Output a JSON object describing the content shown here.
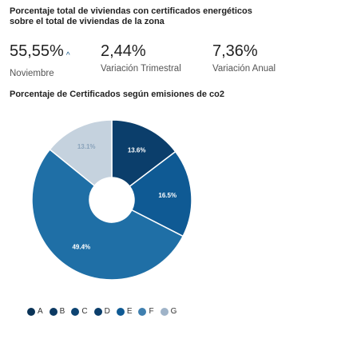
{
  "header": {
    "title": "Porcentaje total de viviendas con certificados energéticos sobre el total de viviendas de la zona"
  },
  "kpis": [
    {
      "value": "55,55%",
      "label": "Noviembre",
      "trend_icon": "caret-up-icon",
      "trend_symbol": "^"
    },
    {
      "value": "2,44%",
      "label": "Variación Trimestral"
    },
    {
      "value": "7,36%",
      "label": "Variación Anual"
    }
  ],
  "chart_title": "Porcentaje de Certificados según emisiones de co2",
  "chart_data": {
    "type": "pie",
    "title": "Porcentaje de Certificados según emisiones de co2",
    "donut": true,
    "categories": [
      "A",
      "B",
      "C",
      "D",
      "E",
      "F",
      "G"
    ],
    "values": [
      0,
      0,
      0,
      13.6,
      16.5,
      49.4,
      13.1
    ],
    "data_labels": [
      "",
      "",
      "",
      "13.6%",
      "16.5%",
      "49.4%",
      "13.1%"
    ],
    "colors": [
      "#0a3357",
      "#0c3a63",
      "#0d4472",
      "#0b3e6b",
      "#0f5a94",
      "#1f6fa6",
      "#c5d2de"
    ],
    "legend_position": "bottom"
  },
  "legend": [
    {
      "label": "A",
      "color": "#0a3357"
    },
    {
      "label": "B",
      "color": "#0c3a63"
    },
    {
      "label": "C",
      "color": "#0d4472"
    },
    {
      "label": "D",
      "color": "#0b3e6b"
    },
    {
      "label": "E",
      "color": "#0f5a94"
    },
    {
      "label": "F",
      "color": "#3f7faf"
    },
    {
      "label": "G",
      "color": "#9fb3c8"
    }
  ]
}
